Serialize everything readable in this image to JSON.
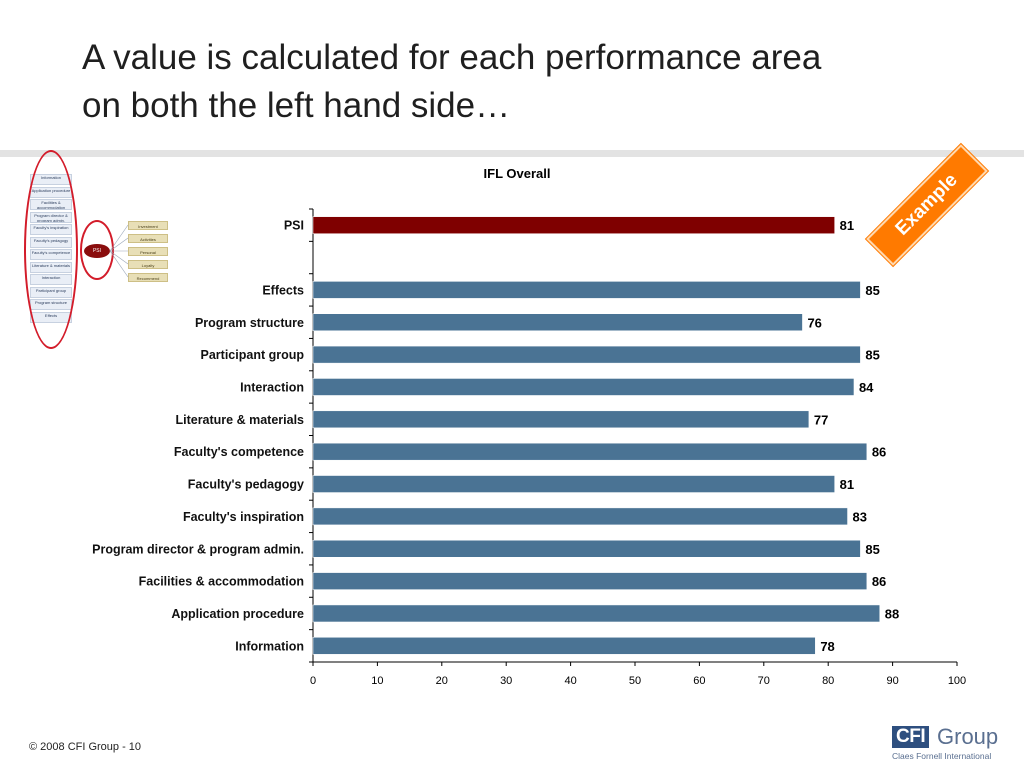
{
  "slide": {
    "title_line1": "A value is calculated for each performance area",
    "title_line2": "on both the left hand side…",
    "footer": "© 2008 CFI Group - 10",
    "badge": "Example",
    "logo": {
      "box_text": "CFI",
      "word": "Group",
      "subtitle": "Claes Fornell International"
    }
  },
  "mini_model": {
    "left_items": [
      "Information",
      "Application procedure",
      "Facilities & accommodation",
      "Program director & program admin.",
      "Faculty's inspiration",
      "Faculty's pedagogy",
      "Faculty's competence",
      "Literature & materials",
      "Interaction",
      "Participant group",
      "Program structure",
      "Effects"
    ],
    "center": "PSI",
    "right_items": [
      "Investment",
      "Activities",
      "Personal development",
      "Loyalty",
      "Recommend"
    ]
  },
  "colors": {
    "psi_bar": "#7f0000",
    "bar": "#4a7394",
    "badge": "#ff7a00",
    "highlight": "#d31c2a"
  },
  "chart_data": {
    "type": "bar",
    "orientation": "horizontal",
    "title": "IFL Overall",
    "xlim": [
      0,
      100
    ],
    "x_ticks": [
      0,
      10,
      20,
      30,
      40,
      50,
      60,
      70,
      80,
      90,
      100
    ],
    "categories": [
      "PSI",
      "",
      "Effects",
      "Program structure",
      "Participant group",
      "Interaction",
      "Literature & materials",
      "Faculty's competence",
      "Faculty's pedagogy",
      "Faculty's inspiration",
      "Program director & program admin.",
      "Facilities & accommodation",
      "Application procedure",
      "Information"
    ],
    "values": [
      81,
      null,
      85,
      76,
      85,
      84,
      77,
      86,
      81,
      83,
      85,
      86,
      88,
      78
    ],
    "data_labels": true,
    "legend": "none",
    "grid": false
  }
}
